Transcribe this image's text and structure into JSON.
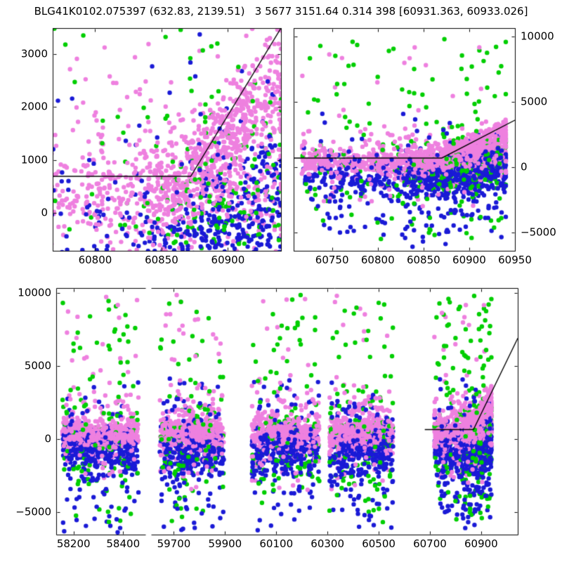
{
  "window": {
    "title": "BLG41K0102.075397 (632.83, 2139.51)   3 5677 3151.64 0.314 398 [60931.363, 60933.026]"
  },
  "colors": {
    "background": "#ffffff",
    "text": "#000000",
    "axis": "#000000",
    "model_line": "#000000",
    "pink": "#EE80DF",
    "green": "#00CE00",
    "blue": "#1A1AD6"
  },
  "chart_data": {
    "type": "scatter",
    "title": "BLG41K0102.075397 (632.83, 2139.51)   3 5677 3151.64 0.314 398 [60931.363, 60933.026]",
    "description": "Survey light curve: flux vs time (HJD-2400000) for three photometric series (pink, green, blue) with black microlensing model line; top-left = zoom of current season, top-right = current season full flux range, bottom = all seasons with broken time axis.",
    "series": [
      {
        "name": "pink"
      },
      {
        "name": "green"
      },
      {
        "name": "blue"
      }
    ],
    "panels": [
      {
        "id": "recent-zoom",
        "position": "top-left",
        "xlim": [
          60768,
          60940
        ],
        "ylim": [
          -717,
          3493
        ],
        "xticks": {
          "values": [
            60800,
            60850,
            60900
          ],
          "labels": [
            "60800",
            "60850",
            "60900"
          ],
          "label_side": "bottom"
        },
        "yticks": {
          "values": [
            0,
            1000,
            2000,
            3000
          ],
          "labels": [
            "0",
            "1000",
            "2000",
            "3000"
          ],
          "label_side": "left"
        },
        "model_line": [
          [
            60768,
            690
          ],
          [
            60872,
            690
          ],
          [
            60940,
            3493
          ]
        ]
      },
      {
        "id": "recent-wide",
        "position": "top-right",
        "xlim": [
          60708,
          60950
        ],
        "ylim": [
          -6398,
          10645
        ],
        "xticks": {
          "values": [
            60750,
            60800,
            60850,
            60900,
            60950
          ],
          "labels": [
            "60750",
            "60800",
            "60850",
            "60900",
            "60950"
          ],
          "label_side": "bottom"
        },
        "yticks": {
          "values": [
            -5000,
            0,
            5000,
            10000
          ],
          "labels": [
            "−5000",
            "0",
            "5000",
            "10000"
          ],
          "label_side": "right"
        },
        "model_line": [
          [
            60708,
            700
          ],
          [
            60870,
            700
          ],
          [
            60950,
            3600
          ]
        ]
      },
      {
        "id": "all-seasons",
        "position": "bottom",
        "broken_axis": true,
        "ylim": [
          -6538,
          10337
        ],
        "yticks": {
          "values": [
            -5000,
            0,
            5000,
            10000
          ],
          "labels": [
            "−5000",
            "0",
            "5000",
            "10000"
          ],
          "label_side": "left"
        },
        "segments": [
          {
            "xlim": [
              58130,
              58490
            ],
            "xticks": {
              "values": [
                58200,
                58400
              ],
              "labels": [
                "58200",
                "58400"
              ]
            }
          },
          {
            "xlim": [
              59611,
              61043
            ],
            "xticks": {
              "values": [
                59700,
                59900,
                60100,
                60300,
                60500,
                60700,
                60900
              ],
              "labels": [
                "59700",
                "59900",
                "60100",
                "60300",
                "60500",
                "60700",
                "60900"
              ]
            }
          }
        ],
        "model_line": [
          [
            60680,
            650
          ],
          [
            60870,
            650
          ],
          [
            61043,
            6900
          ]
        ]
      }
    ],
    "scatter_generator": {
      "seed": 20240613,
      "dot_radius": 3.2,
      "ydist": {
        "pink": [
          {
            "w": 0.64,
            "type": "n",
            "mu": 350,
            "sd": 500
          },
          {
            "w": 0.29,
            "type": "n",
            "mu": 500,
            "sd": 1300
          },
          {
            "w": 0.07,
            "type": "u",
            "a": -3500,
            "b": 9900
          }
        ],
        "blue": [
          {
            "w": 0.6,
            "type": "n",
            "mu": -900,
            "sd": 700
          },
          {
            "w": 0.31,
            "type": "n",
            "mu": -1100,
            "sd": 1900
          },
          {
            "w": 0.09,
            "type": "u",
            "a": -6400,
            "b": 4200
          }
        ],
        "green": [
          {
            "w": 0.6,
            "type": "n",
            "mu": -300,
            "sd": 1500
          },
          {
            "w": 0.4,
            "type": "u",
            "a": -5700,
            "b": 9900
          }
        ]
      },
      "bands": [
        {
          "x": [
            58155,
            58462
          ],
          "n": {
            "pink": 500,
            "blue": 350,
            "green": 125
          },
          "x_mix": [
            {
              "w": 0.88,
              "type": "u",
              "a": 58155,
              "b": 58462
            },
            {
              "w": 0.12,
              "type": "n",
              "mu": 58310,
              "sd": 60
            }
          ]
        },
        {
          "x": [
            59645,
            59895
          ],
          "n": {
            "pink": 500,
            "blue": 350,
            "green": 125
          },
          "x_mix": [
            {
              "w": 0.88,
              "type": "u",
              "a": 59645,
              "b": 59895
            },
            {
              "w": 0.12,
              "type": "n",
              "mu": 59770,
              "sd": 50
            }
          ]
        },
        {
          "x": [
            60005,
            60268
          ],
          "n": {
            "pink": 500,
            "blue": 350,
            "green": 125
          },
          "x_mix": [
            {
              "w": 0.88,
              "type": "u",
              "a": 60005,
              "b": 60268
            },
            {
              "w": 0.12,
              "type": "n",
              "mu": 60140,
              "sd": 52
            }
          ]
        },
        {
          "x": [
            60308,
            60556
          ],
          "n": {
            "pink": 500,
            "blue": 350,
            "green": 125
          },
          "x_mix": [
            {
              "w": 0.88,
              "type": "u",
              "a": 60308,
              "b": 60556
            },
            {
              "w": 0.12,
              "type": "n",
              "mu": 60430,
              "sd": 50
            }
          ]
        },
        {
          "x": [
            60717,
            60940
          ],
          "n": {
            "pink": 1300,
            "blue": 850,
            "green": 330
          },
          "x_mix": [
            {
              "w": 0.5,
              "type": "u",
              "a": 60717,
              "b": 60940
            },
            {
              "w": 0.22,
              "type": "u",
              "a": 60830,
              "b": 60940
            },
            {
              "w": 0.28,
              "type": "n",
              "mu": 60897,
              "sd": 26
            }
          ],
          "rise": {
            "x0": 60858,
            "pink": {
              "frac": 0.72,
              "base": 380,
              "slope": 26,
              "sigma": 520
            },
            "blue": {
              "frac": 0.5,
              "base": -650,
              "slope": 13,
              "sigma": 700
            },
            "green": {
              "frac": 0.4,
              "base": -300,
              "slope": 13,
              "sigma": 900
            }
          }
        }
      ]
    }
  }
}
